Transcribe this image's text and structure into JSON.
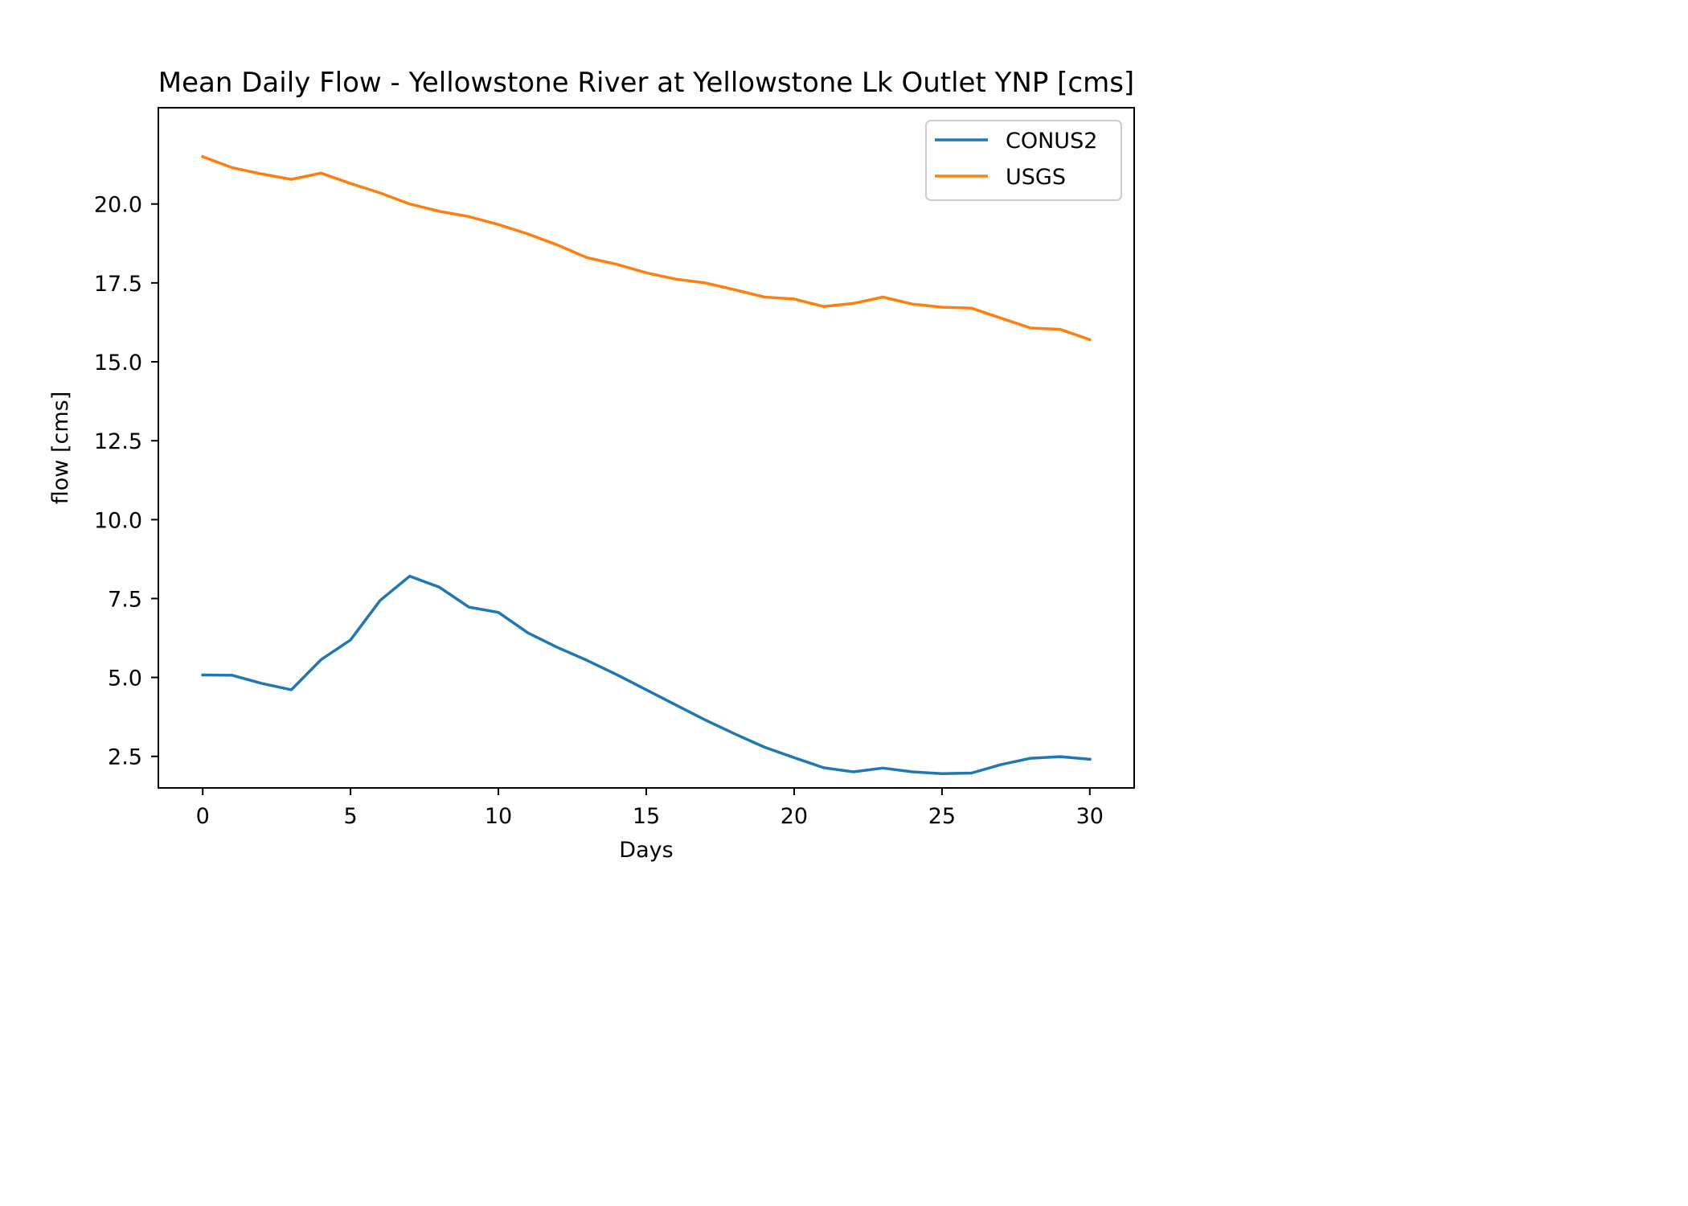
{
  "chart_data": {
    "type": "line",
    "title": "Mean Daily Flow - Yellowstone River at Yellowstone Lk Outlet YNP [cms]",
    "xlabel": "Days",
    "ylabel": "flow [cms]",
    "xlim": [
      -1.5,
      31.5
    ],
    "ylim": [
      1.5,
      23.05
    ],
    "xticks": [
      0,
      5,
      10,
      15,
      20,
      25,
      30
    ],
    "xtick_labels": [
      "0",
      "5",
      "10",
      "15",
      "20",
      "25",
      "30"
    ],
    "yticks": [
      2.5,
      5.0,
      7.5,
      10.0,
      12.5,
      15.0,
      17.5,
      20.0
    ],
    "ytick_labels": [
      "2.5",
      "5.0",
      "7.5",
      "10.0",
      "12.5",
      "15.0",
      "17.5",
      "20.0"
    ],
    "grid": false,
    "legend_position": "top-right",
    "x": [
      0,
      1,
      2,
      3,
      4,
      5,
      6,
      7,
      8,
      9,
      10,
      11,
      12,
      13,
      14,
      15,
      16,
      17,
      18,
      19,
      20,
      21,
      22,
      23,
      24,
      25,
      26,
      27,
      28,
      29,
      30
    ],
    "series": [
      {
        "name": "CONUS2",
        "color": "#1f77b4",
        "values": [
          5.08,
          5.07,
          4.81,
          4.61,
          5.56,
          6.19,
          7.44,
          8.21,
          7.86,
          7.23,
          7.06,
          6.41,
          5.95,
          5.54,
          5.09,
          4.61,
          4.13,
          3.65,
          3.21,
          2.79,
          2.46,
          2.14,
          2.01,
          2.13,
          2.01,
          1.95,
          1.97,
          2.24,
          2.44,
          2.49,
          2.41
        ]
      },
      {
        "name": "USGS",
        "color": "#ff7f0e",
        "values": [
          21.5,
          21.15,
          20.95,
          20.78,
          20.98,
          20.65,
          20.35,
          20.0,
          19.77,
          19.6,
          19.35,
          19.05,
          18.7,
          18.3,
          18.09,
          17.82,
          17.62,
          17.5,
          17.28,
          17.05,
          16.99,
          16.75,
          16.85,
          17.05,
          16.83,
          16.73,
          16.7,
          16.38,
          16.07,
          16.03,
          15.7
        ]
      }
    ]
  }
}
